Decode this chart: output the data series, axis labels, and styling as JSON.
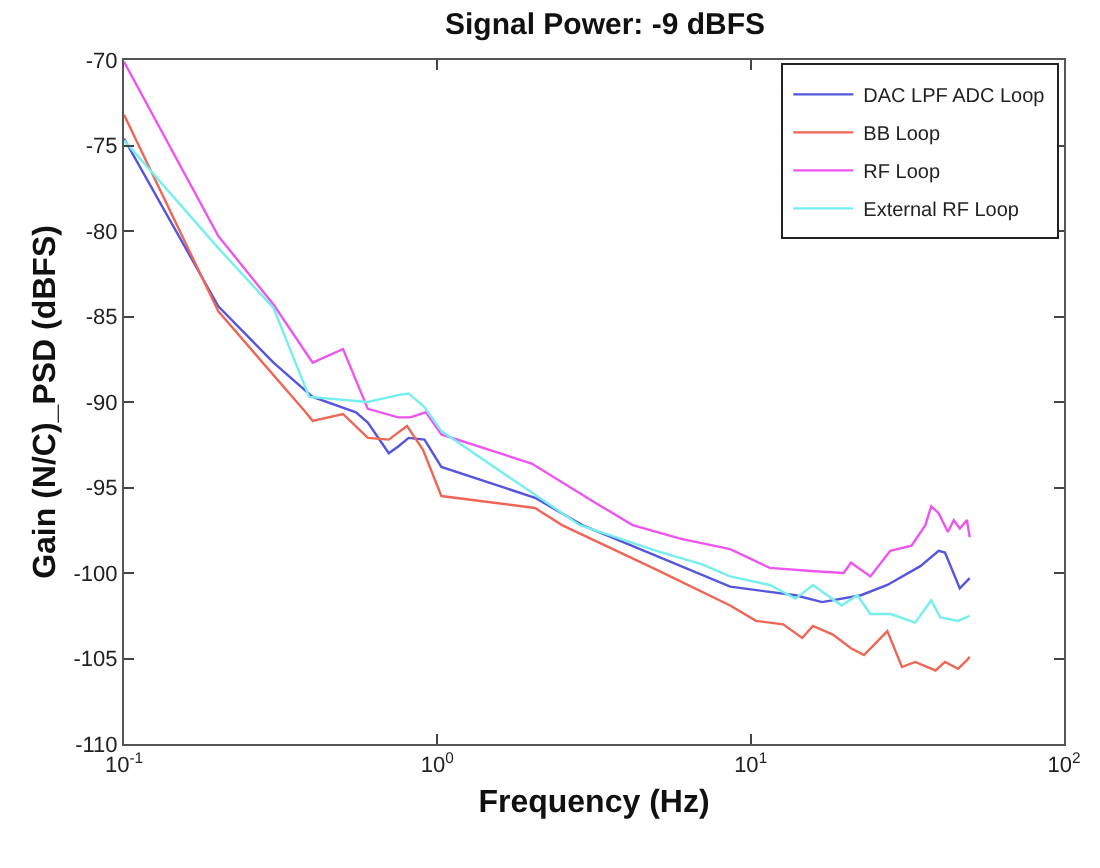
{
  "chart_data": {
    "type": "line",
    "title": "Signal Power: -9 dBFS",
    "xlabel": "Frequency (Hz)",
    "ylabel": "Gain (N/C)_PSD (dBFS)",
    "log": "x",
    "grid": false,
    "legend": "top right",
    "marker": "none",
    "line_style": "solid",
    "xlim": [
      0.1,
      100
    ],
    "xticks": [
      {
        "value": 0.1,
        "label": "10$^{-1}$"
      },
      {
        "value": 1,
        "label": "10$^{0}$"
      },
      {
        "value": 10,
        "label": "10$^{1}$"
      },
      {
        "value": 100,
        "label": "10$^{2}$"
      }
    ],
    "ylim": [
      -110,
      -70
    ],
    "yticks": [
      -110,
      -105,
      -100,
      -95,
      -90,
      -85,
      -80,
      -75,
      -70
    ],
    "series": [
      {
        "name": "DAC LPF ADC Loop",
        "color": "#5555dd",
        "x": [
          0.1,
          0.2,
          0.3,
          0.4,
          0.55,
          0.6,
          0.7,
          0.75,
          0.81,
          0.91,
          1.03,
          2.05,
          2.9,
          5,
          8.6,
          13.9,
          16.9,
          22.5,
          27.3,
          34.8,
          39.8,
          41.7,
          46.5,
          50
        ],
        "values": [
          -74.6,
          -84.4,
          -87.7,
          -89.7,
          -90.6,
          -91.2,
          -93,
          -92.6,
          -92.1,
          -92.2,
          -93.8,
          -95.6,
          -97.2,
          -99,
          -100.8,
          -101.3,
          -101.7,
          -101.3,
          -100.7,
          -99.6,
          -98.7,
          -98.8,
          -100.9,
          -100.3
        ]
      },
      {
        "name": "BB Loop",
        "color": "#ee6655",
        "x": [
          0.1,
          0.2,
          0.38,
          0.4,
          0.5,
          0.6,
          0.7,
          0.8,
          0.9,
          1.03,
          2.05,
          2.5,
          5,
          8.6,
          10.4,
          12.7,
          14.6,
          15.8,
          18.3,
          20.9,
          23,
          27.3,
          30.4,
          33.5,
          38.9,
          41.7,
          45.9,
          49,
          50
        ],
        "values": [
          -73.2,
          -84.7,
          -90.6,
          -91.1,
          -90.7,
          -92.1,
          -92.2,
          -91.4,
          -92.8,
          -95.5,
          -96.2,
          -97.2,
          -99.8,
          -101.9,
          -102.8,
          -103,
          -103.8,
          -103.1,
          -103.6,
          -104.4,
          -104.8,
          -103.4,
          -105.5,
          -105.2,
          -105.7,
          -105.2,
          -105.6,
          -105.1,
          -104.9
        ]
      },
      {
        "name": "RF Loop",
        "color": "#ee55ee",
        "x": [
          0.1,
          0.2,
          0.3,
          0.4,
          0.5,
          0.6,
          0.75,
          0.82,
          0.92,
          1.03,
          2,
          3.2,
          4.2,
          6,
          8.6,
          11.5,
          16,
          19.8,
          20.9,
          24.1,
          27.9,
          32.6,
          36.1,
          37.7,
          39.8,
          42.6,
          44.5,
          46.5,
          49,
          50
        ],
        "values": [
          -70.1,
          -80.3,
          -84.3,
          -87.7,
          -86.9,
          -90.4,
          -90.9,
          -90.9,
          -90.6,
          -91.9,
          -93.6,
          -95.9,
          -97.2,
          -98,
          -98.6,
          -99.7,
          -99.9,
          -100,
          -99.4,
          -100.2,
          -98.7,
          -98.4,
          -97.2,
          -96.1,
          -96.5,
          -97.6,
          -96.9,
          -97.4,
          -96.9,
          -97.9
        ]
      },
      {
        "name": "External RF Loop",
        "color": "#77eeee",
        "x": [
          0.1,
          0.2,
          0.3,
          0.39,
          0.6,
          0.75,
          0.81,
          0.91,
          1.03,
          2.85,
          5,
          7,
          8.6,
          11.5,
          13.9,
          15.8,
          19.5,
          21.9,
          24.1,
          28,
          33.5,
          37.7,
          40.3,
          45.9,
          50
        ],
        "values": [
          -74.7,
          -81,
          -84.5,
          -89.7,
          -90,
          -89.6,
          -89.5,
          -90.3,
          -91.7,
          -97.2,
          -98.7,
          -99.5,
          -100.2,
          -100.7,
          -101.5,
          -100.7,
          -101.9,
          -101.3,
          -102.4,
          -102.4,
          -102.9,
          -101.6,
          -102.6,
          -102.8,
          -102.5
        ]
      }
    ]
  }
}
